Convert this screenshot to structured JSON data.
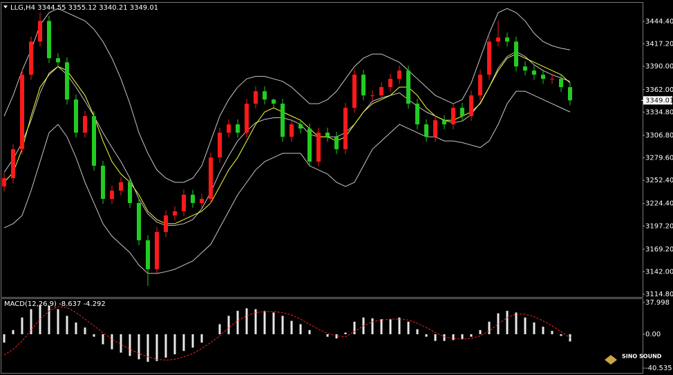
{
  "chart_data": [
    {
      "type": "candlestick",
      "title": "LLG,H4 3344.55 3355.12 3340.21 3349.01",
      "up_color": "#ff1a1a",
      "down_color": "#22cc22",
      "open": [
        3245,
        3255,
        3290,
        3380,
        3420,
        3445,
        3400,
        3395,
        3350,
        3310,
        3330,
        3270,
        3230,
        3240,
        3250,
        3225,
        3180,
        3145,
        3190,
        3210,
        3215,
        3235,
        3225,
        3230,
        3280,
        3310,
        3320,
        3310,
        3345,
        3360,
        3350,
        3345,
        3305,
        3320,
        3315,
        3275,
        3310,
        3305,
        3290,
        3340,
        3380,
        3355,
        3355,
        3365,
        3375,
        3385,
        3345,
        3320,
        3305,
        3325,
        3320,
        3340,
        3330,
        3355,
        3380,
        3420,
        3425,
        3420,
        3390,
        3385,
        3380,
        3375,
        3375,
        3365
      ],
      "high": [
        3261,
        3296,
        3386,
        3426,
        3455,
        3451,
        3406,
        3401,
        3356,
        3336,
        3336,
        3276,
        3246,
        3256,
        3256,
        3231,
        3186,
        3196,
        3216,
        3221,
        3241,
        3241,
        3236,
        3286,
        3316,
        3326,
        3326,
        3351,
        3366,
        3366,
        3351,
        3351,
        3326,
        3326,
        3321,
        3316,
        3316,
        3311,
        3346,
        3386,
        3386,
        3361,
        3371,
        3381,
        3391,
        3391,
        3351,
        3326,
        3331,
        3331,
        3346,
        3346,
        3361,
        3386,
        3426,
        3445,
        3431,
        3426,
        3396,
        3391,
        3386,
        3381,
        3381,
        3371
      ],
      "low": [
        3239,
        3249,
        3284,
        3374,
        3414,
        3394,
        3389,
        3344,
        3304,
        3304,
        3264,
        3224,
        3224,
        3234,
        3219,
        3174,
        3125,
        3139,
        3184,
        3204,
        3209,
        3219,
        3219,
        3224,
        3274,
        3304,
        3304,
        3304,
        3339,
        3344,
        3339,
        3299,
        3299,
        3309,
        3269,
        3269,
        3299,
        3284,
        3284,
        3334,
        3349,
        3349,
        3349,
        3359,
        3369,
        3339,
        3314,
        3299,
        3299,
        3314,
        3314,
        3324,
        3324,
        3349,
        3374,
        3414,
        3414,
        3384,
        3379,
        3374,
        3369,
        3369,
        3359,
        3343
      ],
      "close": [
        3255,
        3290,
        3380,
        3420,
        3445,
        3400,
        3395,
        3350,
        3310,
        3330,
        3270,
        3230,
        3240,
        3250,
        3225,
        3180,
        3145,
        3190,
        3210,
        3215,
        3235,
        3225,
        3230,
        3280,
        3310,
        3320,
        3310,
        3345,
        3360,
        3350,
        3345,
        3305,
        3320,
        3315,
        3275,
        3310,
        3305,
        3290,
        3340,
        3380,
        3355,
        3355,
        3365,
        3375,
        3385,
        3345,
        3320,
        3305,
        3325,
        3320,
        3340,
        3330,
        3355,
        3380,
        3420,
        3425,
        3420,
        3390,
        3385,
        3380,
        3375,
        3375,
        3365,
        3349.01
      ],
      "lines": [
        {
          "color": "#c8c8c8",
          "values": [
            3330,
            3355,
            3385,
            3410,
            3440,
            3455,
            3460,
            3455,
            3450,
            3445,
            3435,
            3420,
            3400,
            3375,
            3345,
            3310,
            3285,
            3265,
            3255,
            3250,
            3250,
            3255,
            3270,
            3300,
            3330,
            3350,
            3365,
            3375,
            3378,
            3378,
            3375,
            3372,
            3365,
            3355,
            3345,
            3345,
            3350,
            3360,
            3375,
            3390,
            3400,
            3405,
            3405,
            3400,
            3395,
            3385,
            3375,
            3365,
            3355,
            3350,
            3345,
            3350,
            3370,
            3400,
            3430,
            3455,
            3460,
            3455,
            3445,
            3430,
            3420,
            3415,
            3412,
            3410
          ]
        },
        {
          "color": "#c8c8c8",
          "values": [
            3262,
            3278,
            3298,
            3325,
            3358,
            3382,
            3390,
            3380,
            3365,
            3348,
            3330,
            3310,
            3292,
            3275,
            3255,
            3230,
            3212,
            3202,
            3198,
            3198,
            3200,
            3205,
            3218,
            3238,
            3262,
            3282,
            3300,
            3312,
            3322,
            3326,
            3328,
            3328,
            3325,
            3320,
            3308,
            3305,
            3305,
            3305,
            3310,
            3320,
            3335,
            3348,
            3352,
            3355,
            3358,
            3350,
            3342,
            3335,
            3330,
            3325,
            3322,
            3324,
            3332,
            3346,
            3365,
            3388,
            3402,
            3408,
            3402,
            3392,
            3385,
            3380,
            3376,
            3372
          ]
        },
        {
          "color": "#c8c8c8",
          "values": [
            3195,
            3200,
            3210,
            3240,
            3275,
            3310,
            3320,
            3305,
            3280,
            3250,
            3225,
            3200,
            3185,
            3175,
            3165,
            3150,
            3140,
            3140,
            3142,
            3145,
            3150,
            3155,
            3165,
            3175,
            3195,
            3215,
            3235,
            3250,
            3265,
            3275,
            3280,
            3285,
            3285,
            3285,
            3270,
            3265,
            3260,
            3250,
            3245,
            3250,
            3270,
            3290,
            3300,
            3310,
            3320,
            3315,
            3310,
            3305,
            3305,
            3300,
            3300,
            3298,
            3295,
            3292,
            3300,
            3320,
            3345,
            3360,
            3360,
            3355,
            3350,
            3345,
            3340,
            3335
          ]
        },
        {
          "color": "#ffff33",
          "values": [
            3250,
            3262,
            3290,
            3330,
            3365,
            3380,
            3390,
            3385,
            3370,
            3355,
            3330,
            3300,
            3275,
            3260,
            3250,
            3235,
            3215,
            3205,
            3200,
            3200,
            3205,
            3210,
            3215,
            3225,
            3245,
            3265,
            3280,
            3300,
            3320,
            3335,
            3340,
            3335,
            3330,
            3325,
            3315,
            3305,
            3305,
            3300,
            3305,
            3320,
            3335,
            3345,
            3350,
            3355,
            3365,
            3365,
            3355,
            3340,
            3330,
            3325,
            3325,
            3330,
            3335,
            3345,
            3365,
            3385,
            3400,
            3405,
            3400,
            3395,
            3390,
            3385,
            3380,
            3370
          ]
        }
      ],
      "last_price": {
        "value": 3349.01,
        "label": "3349.01"
      },
      "ylim": [
        3111.5,
        3466.1
      ],
      "yticks": [
        {
          "value": 3444.4,
          "label": "3444.40"
        },
        {
          "value": 3417.2,
          "label": "3417.20"
        },
        {
          "value": 3390,
          "label": "3390.00"
        },
        {
          "value": 3362,
          "label": "3362.00"
        },
        {
          "value": 3334.8,
          "label": "3334.80"
        },
        {
          "value": 3306.8,
          "label": "3306.80"
        },
        {
          "value": 3279.6,
          "label": "3279.60"
        },
        {
          "value": 3252.4,
          "label": "3252.40"
        },
        {
          "value": 3224.4,
          "label": "3224.40"
        },
        {
          "value": 3197.2,
          "label": "3197.20"
        },
        {
          "value": 3169.2,
          "label": "3169.20"
        },
        {
          "value": 3142,
          "label": "3142.00"
        },
        {
          "value": 3114.8,
          "label": "3114.80"
        }
      ]
    },
    {
      "type": "macd",
      "title": "MACD(12,26,9) -8.637 -4.292",
      "color": "#e8e8e8",
      "values": [
        -10,
        5,
        20,
        30,
        35,
        34,
        30,
        22,
        14,
        8,
        -3,
        -12,
        -18,
        -22,
        -26,
        -30,
        -33,
        -32,
        -28,
        -24,
        -20,
        -16,
        -10,
        0,
        12,
        22,
        28,
        31,
        30,
        28,
        26,
        22,
        16,
        12,
        5,
        0,
        -3,
        -5,
        2,
        15,
        20,
        19,
        18,
        18,
        20,
        15,
        6,
        -3,
        -8,
        -8,
        -7,
        -6,
        -3,
        5,
        15,
        25,
        28,
        26,
        20,
        14,
        9,
        4,
        -2,
        -8.637
      ],
      "signal": {
        "color": "#ff2020",
        "values": [
          -25,
          -18,
          -8,
          5,
          18,
          28,
          33,
          32,
          26,
          18,
          10,
          2,
          -6,
          -12,
          -18,
          -23,
          -27,
          -30,
          -31,
          -30,
          -27,
          -23,
          -17,
          -10,
          -2,
          8,
          16,
          22,
          26,
          27,
          27,
          26,
          23,
          18,
          12,
          6,
          1,
          -2,
          -3,
          3,
          10,
          15,
          17,
          18,
          18,
          17,
          13,
          8,
          2,
          -3,
          -5,
          -6,
          -5,
          -2,
          4,
          12,
          20,
          24,
          24,
          21,
          16,
          10,
          3,
          -4.292
        ]
      },
      "ylim": [
        -46.3,
        42.1
      ],
      "yticks": [
        37.998,
        {
          "value": 0,
          "label": "0.00"
        },
        -40.535
      ]
    }
  ],
  "logo": "SINO SOUND"
}
